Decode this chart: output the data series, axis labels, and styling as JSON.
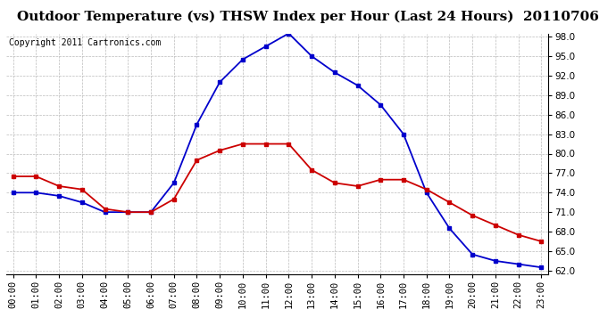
{
  "title": "Outdoor Temperature (vs) THSW Index per Hour (Last 24 Hours)  20110706",
  "copyright": "Copyright 2011 Cartronics.com",
  "hours": [
    "00:00",
    "01:00",
    "02:00",
    "03:00",
    "04:00",
    "05:00",
    "06:00",
    "07:00",
    "08:00",
    "09:00",
    "10:00",
    "11:00",
    "12:00",
    "13:00",
    "14:00",
    "15:00",
    "16:00",
    "17:00",
    "18:00",
    "19:00",
    "20:00",
    "21:00",
    "22:00",
    "23:00"
  ],
  "temp_outdoor": [
    76.5,
    76.5,
    75.0,
    74.5,
    71.5,
    71.0,
    71.0,
    73.0,
    79.0,
    80.5,
    81.5,
    81.5,
    81.5,
    77.5,
    75.5,
    75.0,
    76.0,
    76.0,
    74.5,
    72.5,
    70.5,
    69.0,
    67.5,
    66.5
  ],
  "thsw_index": [
    74.0,
    74.0,
    73.5,
    72.5,
    71.0,
    71.0,
    71.0,
    75.5,
    84.5,
    91.0,
    94.5,
    96.5,
    98.5,
    95.0,
    92.5,
    90.5,
    87.5,
    83.0,
    74.0,
    68.5,
    64.5,
    63.5,
    63.0,
    62.5
  ],
  "temp_color": "#cc0000",
  "thsw_color": "#0000cc",
  "bg_color": "#ffffff",
  "grid_color": "#bbbbbb",
  "plot_bg_color": "#ffffff",
  "ylim_min": 62.0,
  "ylim_max": 98.0,
  "yticks": [
    62.0,
    65.0,
    68.0,
    71.0,
    74.0,
    77.0,
    80.0,
    83.0,
    86.0,
    89.0,
    92.0,
    95.0,
    98.0
  ],
  "title_fontsize": 11,
  "copyright_fontsize": 7,
  "tick_fontsize": 7.5,
  "linewidth": 1.3,
  "markersize": 3.5
}
